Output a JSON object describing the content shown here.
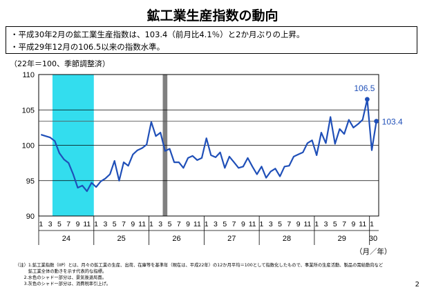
{
  "page": {
    "title": "鉱工業生産指数の動向",
    "bullets": [
      "・平成30年2月の鉱工業生産指数は、103.4（前月比4.1％）と2か月ぶりの上昇。",
      "・平成29年12月の106.5以来の指数水準。"
    ],
    "unit_note": "（22年＝100、季節調整済）",
    "footnotes": [
      "（注）1.鉱工業指数（IIP）とは、月々の鉱工業の生産、出荷、在庫等を基準年（現在は、平成22年）の12か月平均＝100として指数化したもので、事業所の生産活動、製品の需給動向など",
      "　　　鉱工業全体の動きを示す代表的な指標。",
      "　　2.水色のシャドー部分は、景気後退局面。",
      "　　3.灰色のシャドー部分は、消費税率引上げ。"
    ],
    "page_number": "2"
  },
  "chart_data": {
    "type": "line",
    "ylim": [
      90,
      110
    ],
    "yticks": [
      "110",
      "105",
      "100",
      "95",
      "90"
    ],
    "month_labels": [
      "1",
      "3",
      "5",
      "7",
      "9",
      "11",
      "1",
      "3",
      "5",
      "7",
      "9",
      "11",
      "1",
      "3",
      "5",
      "7",
      "9",
      "11",
      "1",
      "3",
      "5",
      "7",
      "9",
      "11",
      "1",
      "3",
      "5",
      "7",
      "9",
      "11",
      "1",
      "3",
      "5",
      "7",
      "9",
      "11",
      "1"
    ],
    "year_labels": [
      "24",
      "25",
      "26",
      "27",
      "28",
      "29",
      "30"
    ],
    "axis_suffix": "（月／年）",
    "annotations": [
      {
        "label": "106.5",
        "index": 71
      },
      {
        "label": "103.4",
        "index": 73
      }
    ],
    "hline": 103.4,
    "shades": [
      {
        "type": "recession",
        "start_index": 3,
        "end_index": 11,
        "color": "#33ddee"
      },
      {
        "type": "tax_hike",
        "start_index": 27,
        "end_index": 27,
        "color": "#808080"
      }
    ],
    "series": [
      {
        "color": "#1f4fb8",
        "values": [
          101.5,
          101.3,
          101.1,
          100.6,
          98.9,
          98.0,
          97.5,
          95.9,
          94.0,
          94.3,
          93.5,
          94.7,
          94.1,
          94.9,
          95.3,
          95.9,
          97.8,
          95.0,
          97.6,
          97.1,
          98.7,
          99.3,
          99.6,
          100.1,
          103.3,
          101.3,
          101.8,
          99.2,
          99.5,
          97.6,
          97.6,
          96.8,
          98.2,
          98.5,
          97.9,
          98.2,
          101.0,
          98.6,
          98.3,
          99.0,
          96.8,
          98.4,
          97.6,
          96.8,
          97.0,
          98.2,
          97.0,
          95.9,
          97.0,
          95.4,
          96.3,
          96.7,
          95.6,
          97.0,
          97.1,
          98.4,
          98.7,
          99.0,
          100.3,
          100.7,
          98.6,
          101.8,
          100.3,
          104.0,
          100.2,
          102.3,
          101.6,
          103.6,
          102.5,
          103.0,
          103.6,
          106.5,
          99.3,
          103.4
        ]
      }
    ]
  }
}
